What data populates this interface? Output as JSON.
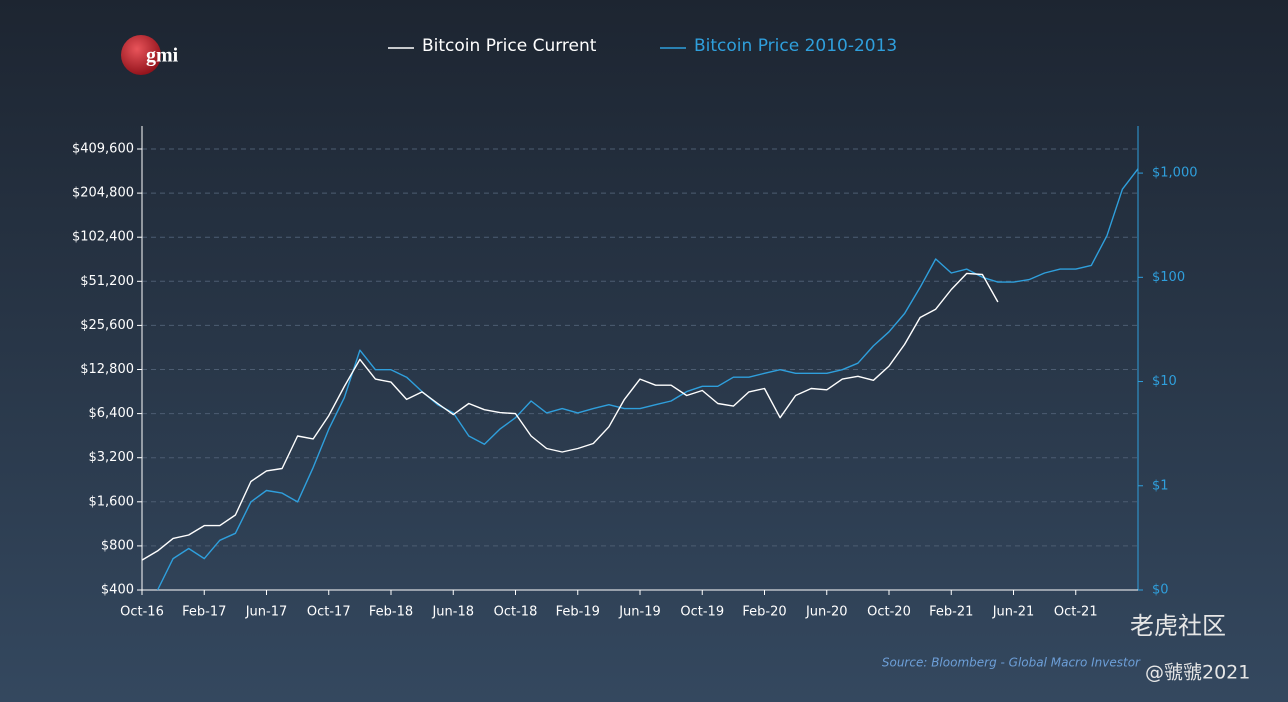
{
  "logo": "gmi",
  "source": "Source: Bloomberg - Global Macro Investor",
  "watermark": "老虎社区",
  "watermark_user": "@虢虢2021",
  "chart_data": {
    "type": "line",
    "x": [
      "2016-10",
      "2016-11",
      "2016-12",
      "2017-01",
      "2017-02",
      "2017-03",
      "2017-04",
      "2017-05",
      "2017-06",
      "2017-07",
      "2017-08",
      "2017-09",
      "2017-10",
      "2017-11",
      "2017-12",
      "2018-01",
      "2018-02",
      "2018-03",
      "2018-04",
      "2018-05",
      "2018-06",
      "2018-07",
      "2018-08",
      "2018-09",
      "2018-10",
      "2018-11",
      "2018-12",
      "2019-01",
      "2019-02",
      "2019-03",
      "2019-04",
      "2019-05",
      "2019-06",
      "2019-07",
      "2019-08",
      "2019-09",
      "2019-10",
      "2019-11",
      "2019-12",
      "2020-01",
      "2020-02",
      "2020-03",
      "2020-04",
      "2020-05",
      "2020-06",
      "2020-07",
      "2020-08",
      "2020-09",
      "2020-10",
      "2020-11",
      "2020-12",
      "2021-01",
      "2021-02",
      "2021-03",
      "2021-04",
      "2021-05",
      "2021-06",
      "2021-07",
      "2021-08",
      "2021-09",
      "2021-10",
      "2021-11",
      "2021-12",
      "2022-01",
      "2022-02"
    ],
    "series": [
      {
        "name": "Bitcoin Price Current",
        "color": "#ffffff",
        "values": [
          640,
          740,
          900,
          950,
          1100,
          1100,
          1300,
          2200,
          2600,
          2700,
          4500,
          4300,
          6200,
          9800,
          15000,
          11000,
          10500,
          8000,
          9000,
          7500,
          6300,
          7500,
          6800,
          6500,
          6400,
          4500,
          3700,
          3500,
          3700,
          4000,
          5200,
          8000,
          11000,
          10000,
          10000,
          8500,
          9200,
          7500,
          7200,
          9000,
          9500,
          6000,
          8500,
          9500,
          9300,
          11000,
          11500,
          10800,
          13500,
          19000,
          29000,
          33000,
          45000,
          58000,
          57000,
          37000,
          null,
          null,
          null,
          null,
          null,
          null,
          null,
          null,
          null
        ]
      },
      {
        "name": "Bitcoin Price 2010-2013",
        "color": "#2f9fdc",
        "axis": "y2",
        "values": [
          null,
          0.1,
          0.2,
          0.25,
          0.2,
          0.3,
          0.35,
          0.7,
          0.9,
          0.85,
          0.7,
          1.5,
          3.5,
          7,
          20,
          13,
          13,
          11,
          8,
          6,
          5,
          3,
          2.5,
          3.5,
          4.5,
          6.5,
          5,
          5.5,
          5,
          5.5,
          6,
          5.5,
          5.5,
          6,
          6.5,
          8,
          9,
          9,
          11,
          11,
          12,
          13,
          12,
          12,
          12,
          13,
          15,
          22,
          30,
          45,
          80,
          150,
          110,
          120,
          100,
          90,
          90,
          95,
          110,
          120,
          120,
          130,
          250,
          700,
          1100
        ]
      }
    ],
    "xticks": [
      {
        "value": "2016-10",
        "label": "Oct-16"
      },
      {
        "value": "2017-02",
        "label": "Feb-17"
      },
      {
        "value": "2017-06",
        "label": "Jun-17"
      },
      {
        "value": "2017-10",
        "label": "Oct-17"
      },
      {
        "value": "2018-02",
        "label": "Feb-18"
      },
      {
        "value": "2018-06",
        "label": "Jun-18"
      },
      {
        "value": "2018-10",
        "label": "Oct-18"
      },
      {
        "value": "2019-02",
        "label": "Feb-19"
      },
      {
        "value": "2019-06",
        "label": "Jun-19"
      },
      {
        "value": "2019-10",
        "label": "Oct-19"
      },
      {
        "value": "2020-02",
        "label": "Feb-20"
      },
      {
        "value": "2020-06",
        "label": "Jun-20"
      },
      {
        "value": "2020-10",
        "label": "Oct-20"
      },
      {
        "value": "2021-02",
        "label": "Feb-21"
      },
      {
        "value": "2021-06",
        "label": "Jun-21"
      },
      {
        "value": "2021-10",
        "label": "Oct-21"
      }
    ],
    "ylim": [
      400,
      588000
    ],
    "log_y": true,
    "yticks": [
      {
        "value": 400,
        "label": "$400"
      },
      {
        "value": 800,
        "label": "$800"
      },
      {
        "value": 1600,
        "label": "$1,600"
      },
      {
        "value": 3200,
        "label": "$3,200"
      },
      {
        "value": 6400,
        "label": "$6,400"
      },
      {
        "value": 12800,
        "label": "$12,800"
      },
      {
        "value": 25600,
        "label": "$25,600"
      },
      {
        "value": 51200,
        "label": "$51,200"
      },
      {
        "value": 102400,
        "label": "$102,400"
      },
      {
        "value": 204800,
        "label": "$204,800"
      },
      {
        "value": 409600,
        "label": "$409,600"
      }
    ],
    "y2lim": [
      0.1,
      2830
    ],
    "log_y2": true,
    "y2ticks": [
      {
        "value": 0.1,
        "label": "$0"
      },
      {
        "value": 1,
        "label": "$1"
      },
      {
        "value": 10,
        "label": "$10"
      },
      {
        "value": 100,
        "label": "$100"
      },
      {
        "value": 1000,
        "label": "$1,000"
      }
    ],
    "grid": true
  }
}
